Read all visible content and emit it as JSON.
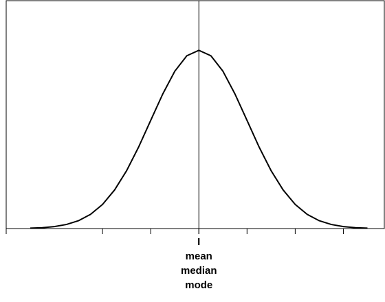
{
  "chart_data": {
    "type": "line",
    "x": [
      -3.5,
      -3.25,
      -3.0,
      -2.75,
      -2.5,
      -2.25,
      -2.0,
      -1.75,
      -1.5,
      -1.25,
      -1.0,
      -0.75,
      -0.5,
      -0.25,
      0,
      0.25,
      0.5,
      0.75,
      1.0,
      1.25,
      1.5,
      1.75,
      2.0,
      2.25,
      2.5,
      2.75,
      3.0,
      3.25,
      3.5
    ],
    "series": [
      {
        "color": "#000000",
        "values": [
          0.0009,
          0.002,
          0.0044,
          0.0091,
          0.0175,
          0.0317,
          0.054,
          0.0863,
          0.1295,
          0.1826,
          0.242,
          0.3011,
          0.3521,
          0.3867,
          0.3989,
          0.3867,
          0.3521,
          0.3011,
          0.242,
          0.1826,
          0.1295,
          0.0863,
          0.054,
          0.0317,
          0.0175,
          0.0091,
          0.0044,
          0.002,
          0.0009
        ]
      }
    ],
    "xlim": [
      -4.0,
      3.85
    ],
    "ylim": [
      0,
      0.51
    ],
    "xticks": [
      -4,
      -2,
      -1,
      0,
      1,
      2,
      3
    ],
    "mean": 0,
    "annotations": [
      "I",
      "mean",
      "median",
      "mode"
    ]
  }
}
